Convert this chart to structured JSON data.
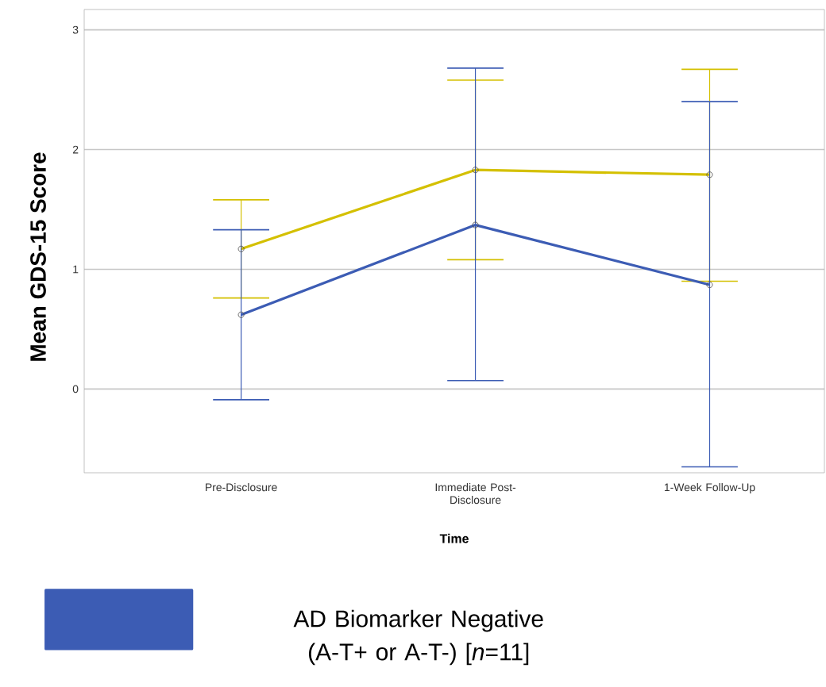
{
  "chart_data": {
    "type": "line",
    "xlabel": "Time",
    "ylabel": "Mean GDS-15 Score",
    "categories": [
      "Pre-Disclosure",
      "Immediate Post-Disclosure",
      "1-Week Follow-Up"
    ],
    "series": [
      {
        "color": "#d4c000",
        "values": [
          1.17,
          1.83,
          1.79
        ],
        "errors": [
          [
            0.76,
            1.58
          ],
          [
            1.08,
            2.58
          ],
          [
            0.9,
            2.67
          ]
        ]
      },
      {
        "name": "AD Biomarker Negative (A-T+ or A-T-) [*n*=11]",
        "color": "#3c5cb4",
        "values": [
          0.62,
          1.37,
          0.87
        ],
        "errors": [
          [
            -0.09,
            1.33
          ],
          [
            0.07,
            2.68
          ],
          [
            -0.65,
            2.4
          ]
        ]
      }
    ],
    "ylim": [
      -0.7,
      3.17
    ],
    "yticks": [
      0,
      1,
      2,
      3
    ],
    "grid": "y",
    "legend": "bottom",
    "marker": "circle",
    "line_style": "solid"
  }
}
